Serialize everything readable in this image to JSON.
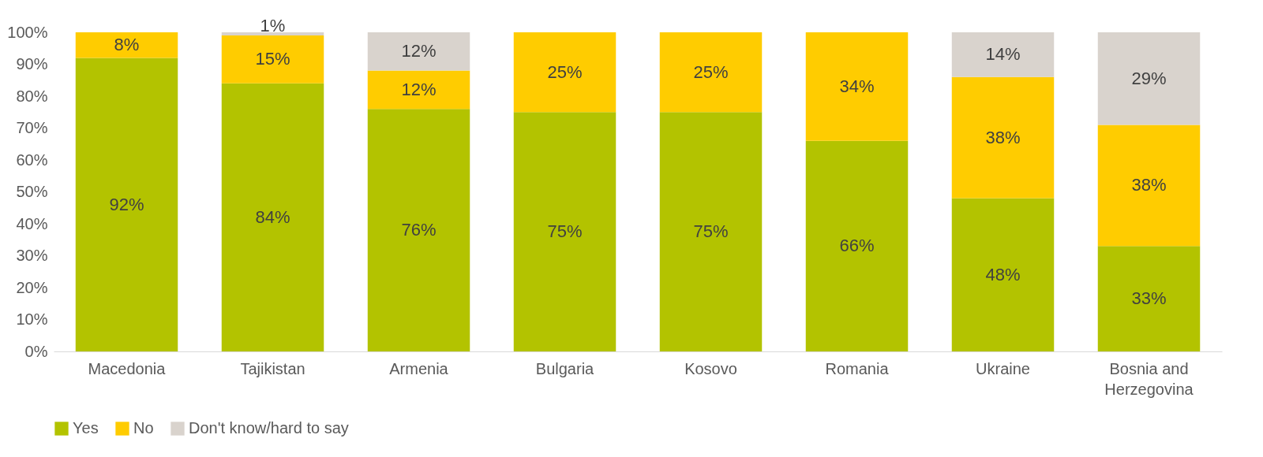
{
  "chart_data": {
    "type": "bar",
    "stacked": true,
    "categories": [
      "Macedonia",
      "Tajikistan",
      "Armenia",
      "Bulgaria",
      "Kosovo",
      "Romania",
      "Ukraine",
      "Bosnia and Herzegovina"
    ],
    "series": [
      {
        "name": "Yes",
        "color": "#b3c300",
        "values": [
          92,
          84,
          76,
          75,
          75,
          66,
          48,
          33
        ],
        "value_labels": [
          "92%",
          "84%",
          "76%",
          "75%",
          "75%",
          "66%",
          "48%",
          "33%"
        ]
      },
      {
        "name": "No",
        "color": "#ffcc00",
        "values": [
          8,
          15,
          12,
          25,
          25,
          34,
          38,
          38
        ],
        "value_labels": [
          "8%",
          "15%",
          "12%",
          "25%",
          "25%",
          "34%",
          "38%",
          "38%"
        ]
      },
      {
        "name": "Don't know/hard to say",
        "color": "#d9d3cd",
        "values": [
          0,
          1,
          12,
          0,
          0,
          0,
          14,
          29
        ],
        "value_labels": [
          null,
          "1%",
          "12%",
          null,
          null,
          null,
          "14%",
          "29%"
        ]
      }
    ],
    "ylim": [
      0,
      100
    ],
    "yticks": [
      {
        "value": 0,
        "label": "0%"
      },
      {
        "value": 10,
        "label": "10%"
      },
      {
        "value": 20,
        "label": "20%"
      },
      {
        "value": 30,
        "label": "30%"
      },
      {
        "value": 40,
        "label": "40%"
      },
      {
        "value": 50,
        "label": "50%"
      },
      {
        "value": 60,
        "label": "60%"
      },
      {
        "value": 70,
        "label": "70%"
      },
      {
        "value": 80,
        "label": "80%"
      },
      {
        "value": 90,
        "label": "90%"
      },
      {
        "value": 100,
        "label": "100%"
      }
    ],
    "legend": "bottom"
  }
}
